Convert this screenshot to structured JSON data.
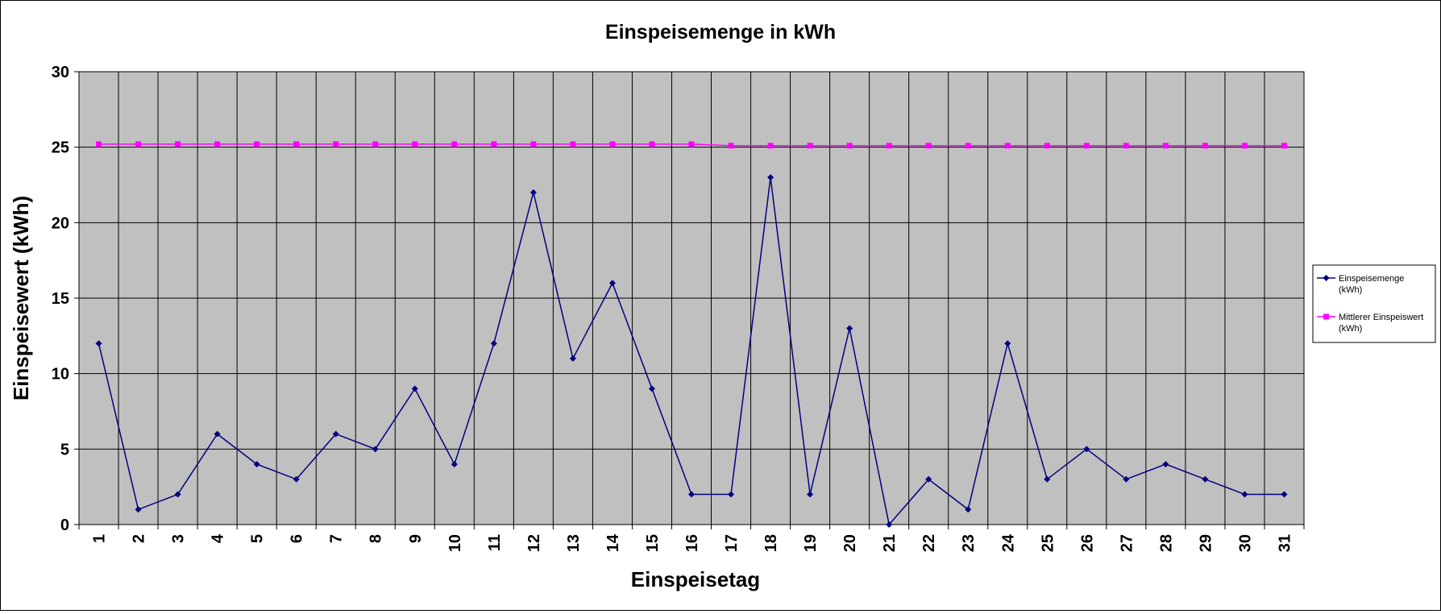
{
  "chart_data": {
    "type": "line",
    "title": "Einspeisemenge in kWh",
    "xlabel": "Einspeisetag",
    "ylabel": "Einspeisewert  (kWh)",
    "categories": [
      "1",
      "2",
      "3",
      "4",
      "5",
      "6",
      "7",
      "8",
      "9",
      "10",
      "11",
      "12",
      "13",
      "14",
      "15",
      "16",
      "17",
      "18",
      "19",
      "20",
      "21",
      "22",
      "23",
      "24",
      "25",
      "26",
      "27",
      "28",
      "29",
      "30",
      "31"
    ],
    "ylim": [
      0,
      30
    ],
    "yticks": [
      "0",
      "5",
      "10",
      "15",
      "20",
      "25",
      "30"
    ],
    "grid": true,
    "legend_position": "right",
    "plot_background": "#c0c0c0",
    "series": [
      {
        "name_line1": "Einspeisemenge",
        "name_line2": "(kWh)",
        "color": "#000080",
        "marker": "diamond",
        "values": [
          12,
          1,
          2,
          6,
          4,
          3,
          6,
          5,
          9,
          4,
          12,
          22,
          11,
          16,
          9,
          2,
          2,
          23,
          2,
          13,
          0,
          3,
          1,
          12,
          3,
          5,
          3,
          4,
          3,
          2,
          2
        ]
      },
      {
        "name_line1": "Mittlerer Einspeiswert",
        "name_line2": "(kWh)",
        "color": "#ff00ff",
        "marker": "square",
        "values": [
          25.2,
          25.2,
          25.2,
          25.2,
          25.2,
          25.2,
          25.2,
          25.2,
          25.2,
          25.2,
          25.2,
          25.2,
          25.2,
          25.2,
          25.2,
          25.2,
          25.1,
          25.1,
          25.1,
          25.1,
          25.1,
          25.1,
          25.1,
          25.1,
          25.1,
          25.1,
          25.1,
          25.1,
          25.1,
          25.1,
          25.1
        ]
      }
    ]
  }
}
